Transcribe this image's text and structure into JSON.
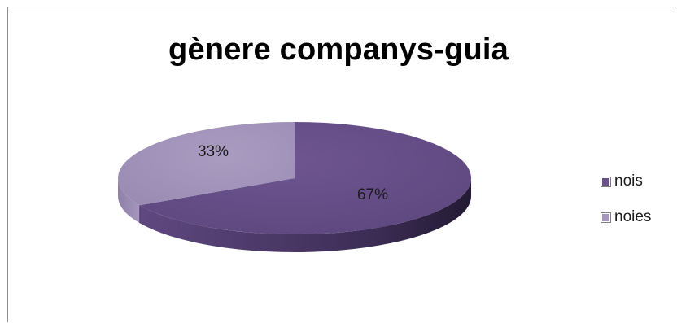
{
  "chart_data": {
    "type": "pie",
    "title": "gènere companys-guia",
    "categories": [
      "nois",
      "noies"
    ],
    "values": [
      67,
      33
    ],
    "value_format": "percent",
    "data_labels": [
      "67%",
      "33%"
    ],
    "colors": [
      "#6a518a",
      "#a596bd"
    ],
    "style": "3d-pie",
    "legend_position": "right"
  }
}
